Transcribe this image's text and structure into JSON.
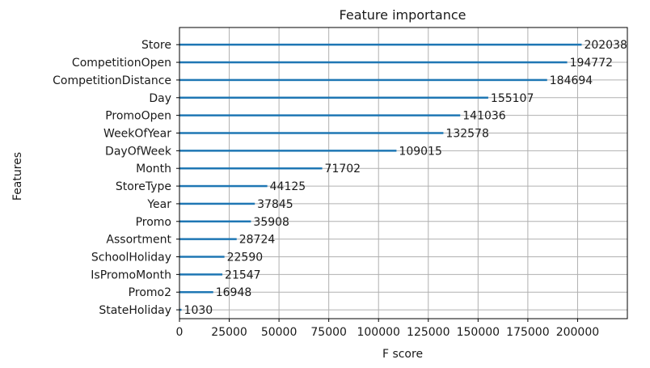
{
  "chart_data": {
    "type": "bar",
    "orientation": "horizontal",
    "title": "Feature importance",
    "xlabel": "F score",
    "ylabel": "Features",
    "xlim": [
      0,
      225000
    ],
    "xticks": [
      0,
      25000,
      50000,
      75000,
      100000,
      125000,
      150000,
      175000,
      200000
    ],
    "grid": true,
    "bar_color": "#1f77b4",
    "categories": [
      "Store",
      "CompetitionOpen",
      "CompetitionDistance",
      "Day",
      "PromoOpen",
      "WeekOfYear",
      "DayOfWeek",
      "Month",
      "StoreType",
      "Year",
      "Promo",
      "Assortment",
      "SchoolHoliday",
      "IsPromoMonth",
      "Promo2",
      "StateHoliday"
    ],
    "values": [
      202038,
      194772,
      184694,
      155107,
      141036,
      132578,
      109015,
      71702,
      44125,
      37845,
      35908,
      28724,
      22590,
      21547,
      16948,
      1030
    ]
  }
}
